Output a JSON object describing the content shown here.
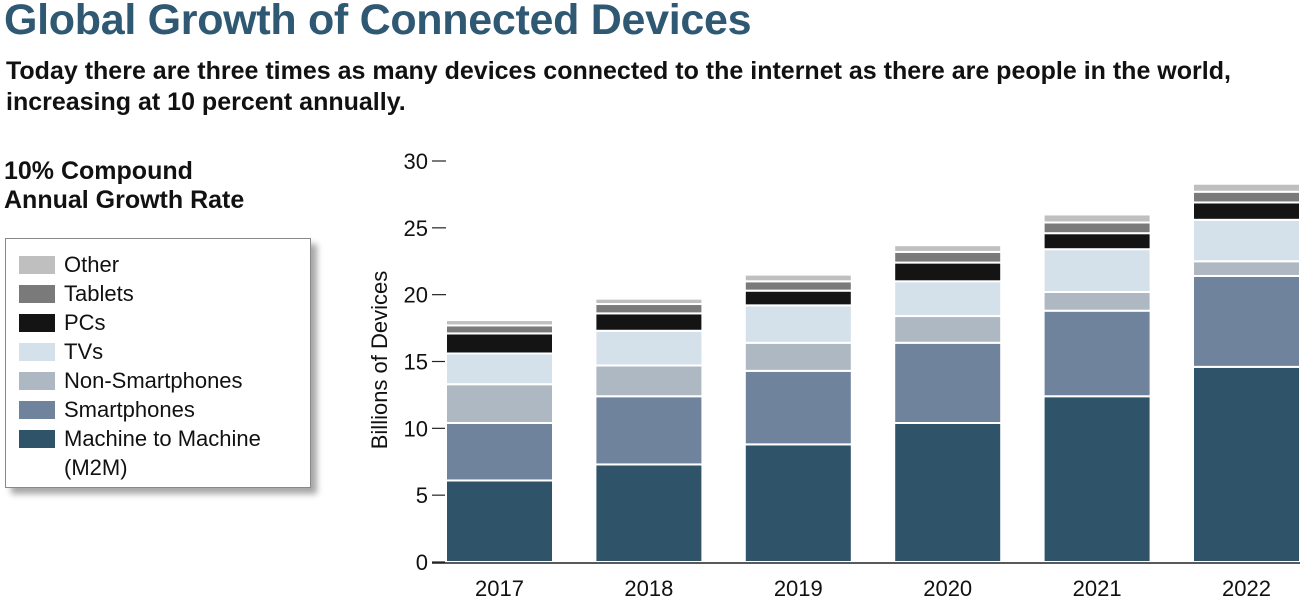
{
  "header": {
    "title": "Global Growth of Connected Devices",
    "subtitle": "Today there are three times as many devices connected to the internet as there are people in the world, increasing at 10 percent annually.",
    "growth_line1": "10% Compound",
    "growth_line2": "Annual Growth Rate"
  },
  "legend": {
    "items": [
      {
        "label": "Other",
        "color": "#bfbfbf"
      },
      {
        "label": "Tablets",
        "color": "#7a7a7a"
      },
      {
        "label": "PCs",
        "color": "#141414"
      },
      {
        "label": "TVs",
        "color": "#d4e0ea"
      },
      {
        "label": "Non-Smartphones",
        "color": "#aeb8c2"
      },
      {
        "label": "Smartphones",
        "color": "#6f849c"
      },
      {
        "label": "Machine to Machine (M2M)",
        "color": "#2f5368"
      }
    ]
  },
  "chart_data": {
    "type": "bar",
    "stacked": true,
    "categories": [
      "2017",
      "2018",
      "2019",
      "2020",
      "2021",
      "2022"
    ],
    "ylabel": "Billions of Devices",
    "xlabel": "",
    "ylim": [
      0,
      30
    ],
    "yticks": [
      0,
      5,
      10,
      15,
      20,
      25,
      30
    ],
    "grid": false,
    "legend_position": "left",
    "series": [
      {
        "name": "Machine to Machine (M2M)",
        "color": "#2f5368",
        "values": [
          6.1,
          7.3,
          8.8,
          10.4,
          12.4,
          14.6
        ]
      },
      {
        "name": "Smartphones",
        "color": "#6f849c",
        "values": [
          4.3,
          5.1,
          5.5,
          6.0,
          6.4,
          6.8
        ]
      },
      {
        "name": "Non-Smartphones",
        "color": "#aeb8c2",
        "values": [
          2.9,
          2.3,
          2.1,
          2.0,
          1.4,
          1.1
        ]
      },
      {
        "name": "TVs",
        "color": "#d4e0ea",
        "values": [
          2.3,
          2.6,
          2.8,
          2.6,
          3.2,
          3.1
        ]
      },
      {
        "name": "PCs",
        "color": "#141414",
        "values": [
          1.5,
          1.3,
          1.1,
          1.4,
          1.2,
          1.3
        ]
      },
      {
        "name": "Tablets",
        "color": "#7a7a7a",
        "values": [
          0.6,
          0.7,
          0.7,
          0.8,
          0.8,
          0.8
        ]
      },
      {
        "name": "Other",
        "color": "#bfbfbf",
        "values": [
          0.4,
          0.4,
          0.5,
          0.5,
          0.6,
          0.6
        ]
      }
    ]
  }
}
